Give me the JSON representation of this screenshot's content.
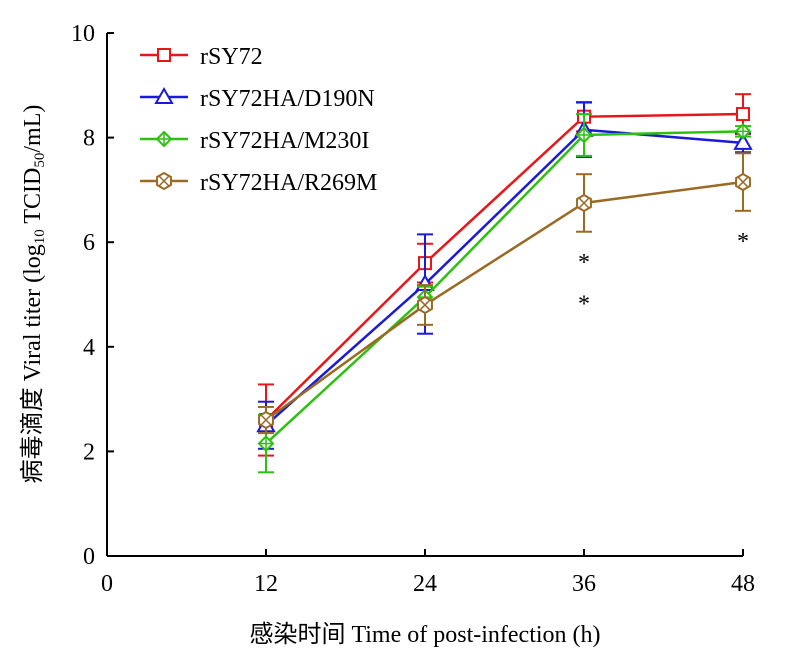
{
  "chart_data": {
    "type": "line",
    "xlabel": "感染时间 Time of post-infection (h)",
    "ylabel": {
      "prefix": "病毒滴度 Viral titer (log",
      "sub1": "10",
      "mid": " TCID",
      "sub2": "50",
      "suffix": "/mL)"
    },
    "xlim": [
      0,
      48
    ],
    "ylim": [
      0,
      10
    ],
    "x_ticks": [
      0,
      12,
      24,
      36,
      48
    ],
    "x_tick_labels": [
      "0",
      "12",
      "24",
      "36",
      "48"
    ],
    "y_ticks": [
      0,
      2,
      4,
      6,
      8,
      10
    ],
    "y_tick_labels": [
      "0",
      "2",
      "4",
      "6",
      "8",
      "10"
    ],
    "grid": false,
    "legend_position": "top-left",
    "x": [
      12,
      24,
      36,
      48
    ],
    "series": [
      {
        "name": "rSY72",
        "color": "#e8161b",
        "marker": "square",
        "values": [
          2.6,
          5.6,
          8.4,
          8.45
        ],
        "errors": [
          0.68,
          0.37,
          0.28,
          0.38
        ]
      },
      {
        "name": "rSY72HA/D190N",
        "color": "#1a1ad8",
        "marker": "triangle",
        "values": [
          2.5,
          5.2,
          8.15,
          7.9
        ],
        "errors": [
          0.45,
          0.95,
          0.52,
          0.18
        ]
      },
      {
        "name": "rSY72HA/M230I",
        "color": "#2dc10f",
        "marker": "diamond",
        "values": [
          2.15,
          4.95,
          8.05,
          8.12
        ],
        "errors": [
          0.55,
          0.2,
          0.4,
          0.1
        ]
      },
      {
        "name": "rSY72HA/R269M",
        "color": "#9a6a24",
        "marker": "hexcross",
        "values": [
          2.6,
          4.8,
          6.75,
          7.15
        ],
        "errors": [
          0.25,
          0.38,
          0.55,
          0.55
        ]
      }
    ],
    "annotations": [
      {
        "text": "*",
        "x": 36,
        "y": 5.7
      },
      {
        "text": "*",
        "x": 36,
        "y": 4.9
      },
      {
        "text": "*",
        "x": 48,
        "y": 6.1
      }
    ]
  }
}
